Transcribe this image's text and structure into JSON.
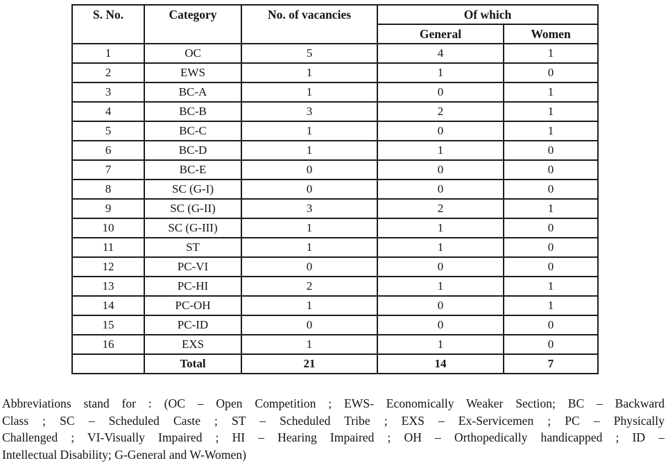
{
  "page": {
    "background": "#ffffff",
    "text_color": "#141414",
    "border_color": "#1c1c1c"
  },
  "table": {
    "headers": {
      "s_no": "S. No.",
      "category": "Category",
      "vacancies": "No. of vacancies",
      "of_which": "Of which",
      "general": "General",
      "women": "Women"
    },
    "rows": [
      {
        "s_no": "1",
        "category": "OC",
        "vacancies": "5",
        "general": "4",
        "women": "1"
      },
      {
        "s_no": "2",
        "category": "EWS",
        "vacancies": "1",
        "general": "1",
        "women": "0"
      },
      {
        "s_no": "3",
        "category": "BC-A",
        "vacancies": "1",
        "general": "0",
        "women": "1"
      },
      {
        "s_no": "4",
        "category": "BC-B",
        "vacancies": "3",
        "general": "2",
        "women": "1"
      },
      {
        "s_no": "5",
        "category": "BC-C",
        "vacancies": "1",
        "general": "0",
        "women": "1"
      },
      {
        "s_no": "6",
        "category": "BC-D",
        "vacancies": "1",
        "general": "1",
        "women": "0"
      },
      {
        "s_no": "7",
        "category": "BC-E",
        "vacancies": "0",
        "general": "0",
        "women": "0"
      },
      {
        "s_no": "8",
        "category": "SC (G-I)",
        "vacancies": "0",
        "general": "0",
        "women": "0"
      },
      {
        "s_no": "9",
        "category": "SC (G-II)",
        "vacancies": "3",
        "general": "2",
        "women": "1"
      },
      {
        "s_no": "10",
        "category": "SC (G-III)",
        "vacancies": "1",
        "general": "1",
        "women": "0"
      },
      {
        "s_no": "11",
        "category": "ST",
        "vacancies": "1",
        "general": "1",
        "women": "0"
      },
      {
        "s_no": "12",
        "category": "PC-VI",
        "vacancies": "0",
        "general": "0",
        "women": "0"
      },
      {
        "s_no": "13",
        "category": "PC-HI",
        "vacancies": "2",
        "general": "1",
        "women": "1"
      },
      {
        "s_no": "14",
        "category": "PC-OH",
        "vacancies": "1",
        "general": "0",
        "women": "1"
      },
      {
        "s_no": "15",
        "category": "PC-ID",
        "vacancies": "0",
        "general": "0",
        "women": "0"
      },
      {
        "s_no": "16",
        "category": "EXS",
        "vacancies": "1",
        "general": "1",
        "women": "0"
      }
    ],
    "total": {
      "s_no": "",
      "category": "Total",
      "vacancies": "21",
      "general": "14",
      "women": "7"
    }
  },
  "footer": {
    "lines": [
      "Abbreviations stand for : (OC – Open Competition ; EWS- Economically Weaker Section; BC – Backward",
      "Class ; SC – Scheduled Caste ; ST – Scheduled Tribe ; EXS – Ex-Servicemen ; PC – Physically",
      "Challenged ; VI-Visually Impaired ; HI – Hearing Impaired ; OH – Orthopedically handicapped ; ID –",
      "Intellectual Disability; G-General and W-Women)"
    ]
  }
}
